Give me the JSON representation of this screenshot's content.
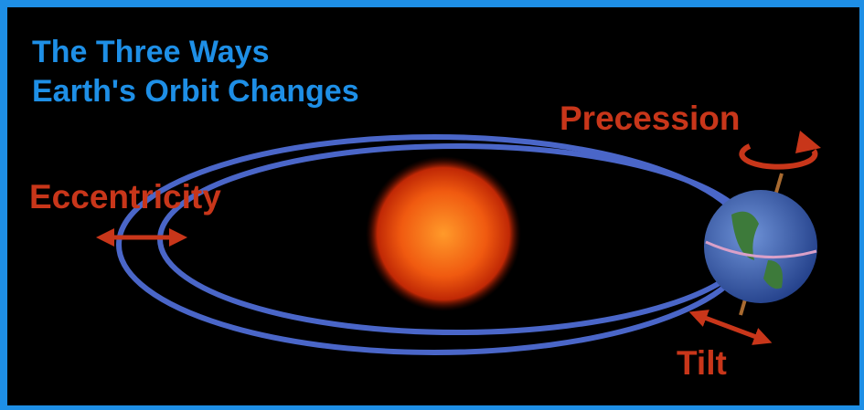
{
  "title": {
    "lines": [
      "The Three Ways",
      "Earth's Orbit Changes"
    ]
  },
  "labels": {
    "precession": "Precession",
    "eccentricity": "Eccentricity",
    "tilt": "Tilt"
  }
}
